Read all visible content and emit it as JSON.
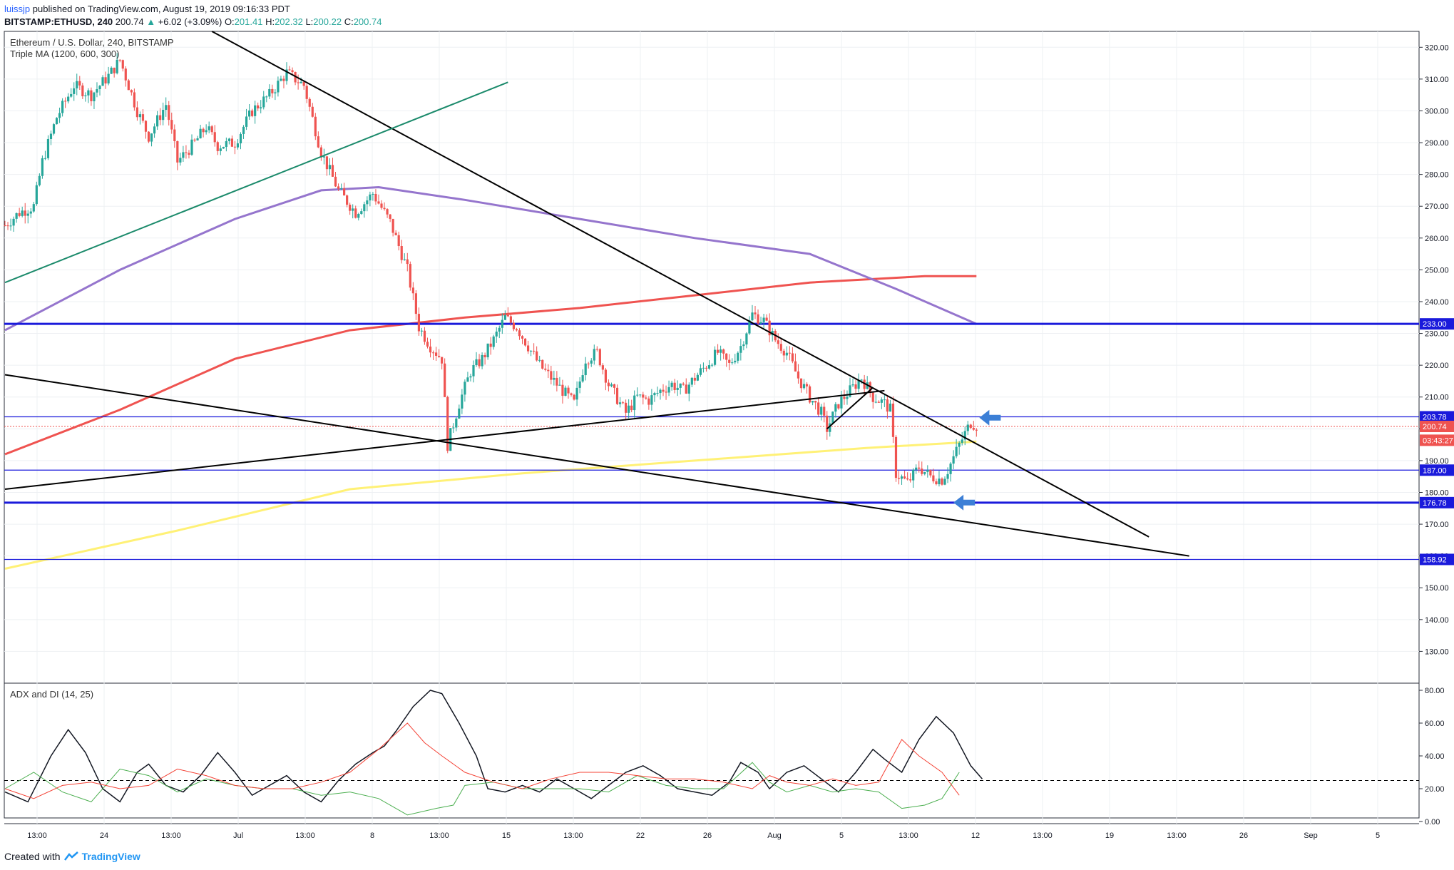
{
  "header": {
    "author": "luissjp",
    "published": "published on TradingView.com, August 19, 2019 09:16:33 PDT",
    "symbol": "BITSTAMP:ETHUSD, 240",
    "last": "200.74",
    "change_arrow": "▲",
    "change": "+6.02 (+3.09%)",
    "o_label": "O:",
    "o": "201.41",
    "h_label": "H:",
    "h": "202.32",
    "l_label": "L:",
    "l": "200.22",
    "c_label": "C:",
    "c": "200.74"
  },
  "legend": {
    "title": "Ethereum / U.S. Dollar, 240, BITSTAMP",
    "indicator": "Triple MA (1200, 600, 300)",
    "adx": "ADX and DI (14, 25)"
  },
  "footer": {
    "created": "Created with",
    "brand": "TradingView"
  },
  "colors": {
    "up": "#26a69a",
    "down": "#ef5350",
    "ma_purple": "#9575cd",
    "ma_red": "#ef5350",
    "ma_yellow": "#fff176",
    "hline_blue": "#1a1adb",
    "trend_green": "#1b8a6b",
    "arrow_blue": "#3c7fd6",
    "adx": "#131722",
    "di_plus": "#4caf50",
    "di_minus": "#f44336"
  },
  "chart_data": [
    {
      "type": "candlestick",
      "title": "Ethereum / U.S. Dollar, 240, BITSTAMP",
      "ylim": [
        120,
        325
      ],
      "y_ticks": [
        "320.00",
        "310.00",
        "300.00",
        "290.00",
        "280.00",
        "270.00",
        "260.00",
        "250.00",
        "240.00",
        "230.00",
        "220.00",
        "210.00",
        "200.00",
        "190.00",
        "180.00",
        "170.00",
        "160.00",
        "150.00",
        "140.00",
        "130.00"
      ],
      "x_ticks": [
        "13:00",
        "24",
        "13:00",
        "Jul",
        "13:00",
        "8",
        "13:00",
        "15",
        "13:00",
        "22",
        "26",
        "Aug",
        "5",
        "13:00",
        "12",
        "13:00",
        "19",
        "13:00",
        "26",
        "Sep",
        "5"
      ],
      "price_path": [
        [
          0,
          264
        ],
        [
          5,
          268
        ],
        [
          10,
          270
        ],
        [
          13,
          284
        ],
        [
          18,
          298
        ],
        [
          24,
          308
        ],
        [
          30,
          305
        ],
        [
          36,
          311
        ],
        [
          40,
          316
        ],
        [
          46,
          300
        ],
        [
          50,
          292
        ],
        [
          56,
          302
        ],
        [
          60,
          284
        ],
        [
          66,
          290
        ],
        [
          70,
          295
        ],
        [
          74,
          289
        ],
        [
          80,
          290
        ],
        [
          86,
          300
        ],
        [
          92,
          305
        ],
        [
          98,
          312
        ],
        [
          104,
          308
        ],
        [
          110,
          287
        ],
        [
          116,
          275
        ],
        [
          122,
          268
        ],
        [
          128,
          274
        ],
        [
          134,
          265
        ],
        [
          140,
          250
        ],
        [
          144,
          232
        ],
        [
          148,
          226
        ],
        [
          152,
          222
        ],
        [
          154,
          195
        ],
        [
          158,
          208
        ],
        [
          162,
          218
        ],
        [
          166,
          222
        ],
        [
          170,
          228
        ],
        [
          174,
          235
        ],
        [
          178,
          232
        ],
        [
          182,
          226
        ],
        [
          186,
          220
        ],
        [
          190,
          216
        ],
        [
          194,
          212
        ],
        [
          198,
          208
        ],
        [
          202,
          222
        ],
        [
          206,
          224
        ],
        [
          210,
          214
        ],
        [
          216,
          205
        ],
        [
          220,
          210
        ],
        [
          224,
          209
        ],
        [
          228,
          212
        ],
        [
          232,
          214
        ],
        [
          236,
          212
        ],
        [
          240,
          216
        ],
        [
          244,
          220
        ],
        [
          248,
          224
        ],
        [
          252,
          220
        ],
        [
          256,
          226
        ],
        [
          260,
          236
        ],
        [
          264,
          234
        ],
        [
          268,
          228
        ],
        [
          272,
          224
        ],
        [
          276,
          216
        ],
        [
          280,
          210
        ],
        [
          284,
          205
        ],
        [
          286,
          200
        ],
        [
          290,
          208
        ],
        [
          294,
          212
        ],
        [
          298,
          216
        ],
        [
          302,
          210
        ],
        [
          306,
          208
        ],
        [
          308,
          206
        ],
        [
          310,
          186
        ],
        [
          314,
          183
        ],
        [
          318,
          188
        ],
        [
          322,
          185
        ],
        [
          326,
          184
        ],
        [
          328,
          187
        ],
        [
          332,
          195
        ],
        [
          336,
          202
        ],
        [
          338,
          201
        ]
      ],
      "moving_averages": [
        {
          "name": "MA 1200",
          "values": [
            [
              0,
              192
            ],
            [
              40,
              206
            ],
            [
              80,
              222
            ],
            [
              120,
              231
            ],
            [
              160,
              235
            ],
            [
              200,
              238
            ],
            [
              240,
              242
            ],
            [
              280,
              246
            ],
            [
              320,
              248
            ],
            [
              338,
              248
            ]
          ]
        },
        {
          "name": "MA 600",
          "values": [
            [
              0,
              231
            ],
            [
              40,
              250
            ],
            [
              80,
              266
            ],
            [
              110,
              275
            ],
            [
              130,
              276
            ],
            [
              160,
              272
            ],
            [
              200,
              266
            ],
            [
              240,
              260
            ],
            [
              280,
              255
            ],
            [
              310,
              244
            ],
            [
              338,
              233
            ]
          ]
        },
        {
          "name": "MA 300",
          "values": [
            [
              0,
              156
            ],
            [
              60,
              168
            ],
            [
              120,
              181
            ],
            [
              180,
              186
            ],
            [
              240,
              190
            ],
            [
              300,
              194
            ],
            [
              338,
              196
            ]
          ]
        }
      ],
      "horizontal_levels": [
        {
          "value": 233.0,
          "label": "233.00",
          "weight": "thick"
        },
        {
          "value": 203.78,
          "label": "203.78",
          "weight": "thin"
        },
        {
          "value": 200.74,
          "label": "200.74",
          "dotted": true
        },
        {
          "value": 187.0,
          "label": "187.00",
          "weight": "thin"
        },
        {
          "value": 176.78,
          "label": "176.78",
          "weight": "thick"
        },
        {
          "value": 158.92,
          "label": "158.92",
          "weight": "thin"
        }
      ],
      "countdown_label": "03:43:27",
      "trendlines": [
        {
          "color": "black",
          "from": [
            72,
            325
          ],
          "to": [
            398,
            166
          ]
        },
        {
          "color": "black",
          "from": [
            0,
            217
          ],
          "to": [
            412,
            160
          ]
        },
        {
          "color": "black",
          "from": [
            0,
            181
          ],
          "to": [
            306,
            212
          ]
        },
        {
          "color": "green",
          "from": [
            0,
            246
          ],
          "to": [
            175,
            309
          ]
        }
      ]
    },
    {
      "type": "line",
      "title": "ADX and DI (14, 25)",
      "ylim": [
        0,
        80
      ],
      "y_ticks": [
        "80.00",
        "60.00",
        "40.00",
        "20.00",
        "0.00"
      ],
      "reference_level": 25,
      "series": [
        {
          "name": "ADX",
          "values": [
            [
              0,
              18
            ],
            [
              8,
              12
            ],
            [
              16,
              40
            ],
            [
              22,
              56
            ],
            [
              28,
              42
            ],
            [
              34,
              20
            ],
            [
              40,
              12
            ],
            [
              46,
              30
            ],
            [
              50,
              35
            ],
            [
              56,
              22
            ],
            [
              62,
              18
            ],
            [
              68,
              28
            ],
            [
              74,
              42
            ],
            [
              80,
              30
            ],
            [
              86,
              16
            ],
            [
              92,
              22
            ],
            [
              98,
              28
            ],
            [
              104,
              18
            ],
            [
              110,
              12
            ],
            [
              116,
              25
            ],
            [
              122,
              35
            ],
            [
              128,
              42
            ],
            [
              132,
              46
            ],
            [
              136,
              55
            ],
            [
              142,
              70
            ],
            [
              148,
              80
            ],
            [
              152,
              78
            ],
            [
              158,
              60
            ],
            [
              164,
              40
            ],
            [
              168,
              20
            ],
            [
              174,
              18
            ],
            [
              180,
              22
            ],
            [
              186,
              18
            ],
            [
              192,
              26
            ],
            [
              198,
              20
            ],
            [
              204,
              14
            ],
            [
              210,
              22
            ],
            [
              216,
              30
            ],
            [
              222,
              34
            ],
            [
              228,
              28
            ],
            [
              234,
              20
            ],
            [
              240,
              18
            ],
            [
              246,
              16
            ],
            [
              252,
              24
            ],
            [
              256,
              36
            ],
            [
              262,
              30
            ],
            [
              266,
              20
            ],
            [
              272,
              30
            ],
            [
              278,
              34
            ],
            [
              284,
              26
            ],
            [
              290,
              18
            ],
            [
              296,
              30
            ],
            [
              302,
              44
            ],
            [
              306,
              38
            ],
            [
              312,
              30
            ],
            [
              318,
              50
            ],
            [
              324,
              64
            ],
            [
              330,
              54
            ],
            [
              336,
              34
            ],
            [
              340,
              26
            ]
          ]
        },
        {
          "name": "+DI",
          "values": [
            [
              0,
              20
            ],
            [
              10,
              30
            ],
            [
              20,
              18
            ],
            [
              30,
              12
            ],
            [
              40,
              32
            ],
            [
              50,
              28
            ],
            [
              60,
              18
            ],
            [
              70,
              26
            ],
            [
              80,
              22
            ],
            [
              90,
              20
            ],
            [
              100,
              20
            ],
            [
              110,
              16
            ],
            [
              120,
              18
            ],
            [
              130,
              14
            ],
            [
              140,
              4
            ],
            [
              150,
              8
            ],
            [
              156,
              10
            ],
            [
              160,
              22
            ],
            [
              170,
              24
            ],
            [
              180,
              20
            ],
            [
              190,
              20
            ],
            [
              200,
              20
            ],
            [
              210,
              18
            ],
            [
              220,
              28
            ],
            [
              230,
              22
            ],
            [
              240,
              20
            ],
            [
              250,
              20
            ],
            [
              260,
              36
            ],
            [
              266,
              24
            ],
            [
              272,
              18
            ],
            [
              280,
              22
            ],
            [
              288,
              18
            ],
            [
              296,
              20
            ],
            [
              304,
              18
            ],
            [
              312,
              8
            ],
            [
              320,
              10
            ],
            [
              326,
              14
            ],
            [
              332,
              30
            ]
          ]
        },
        {
          "name": "-DI",
          "values": [
            [
              0,
              20
            ],
            [
              10,
              14
            ],
            [
              20,
              22
            ],
            [
              30,
              24
            ],
            [
              40,
              20
            ],
            [
              50,
              22
            ],
            [
              60,
              32
            ],
            [
              70,
              28
            ],
            [
              80,
              22
            ],
            [
              90,
              20
            ],
            [
              100,
              20
            ],
            [
              110,
              24
            ],
            [
              120,
              30
            ],
            [
              130,
              44
            ],
            [
              140,
              60
            ],
            [
              146,
              48
            ],
            [
              152,
              40
            ],
            [
              160,
              30
            ],
            [
              170,
              24
            ],
            [
              180,
              20
            ],
            [
              190,
              26
            ],
            [
              200,
              30
            ],
            [
              210,
              30
            ],
            [
              220,
              28
            ],
            [
              230,
              26
            ],
            [
              240,
              26
            ],
            [
              250,
              24
            ],
            [
              260,
              20
            ],
            [
              266,
              28
            ],
            [
              272,
              24
            ],
            [
              280,
              22
            ],
            [
              288,
              26
            ],
            [
              296,
              22
            ],
            [
              304,
              24
            ],
            [
              312,
              50
            ],
            [
              318,
              40
            ],
            [
              326,
              30
            ],
            [
              332,
              16
            ]
          ]
        }
      ]
    }
  ]
}
